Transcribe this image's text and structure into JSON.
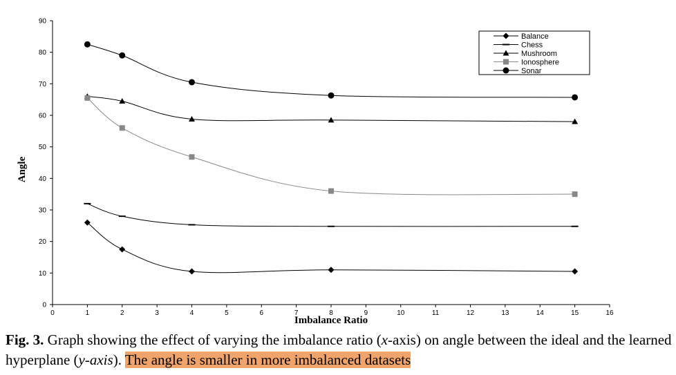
{
  "chart_data": {
    "type": "line",
    "xlabel": "Imbalance Ratio",
    "ylabel": "Angle",
    "xlim": [
      0,
      16
    ],
    "ylim": [
      0,
      90
    ],
    "xticks": [
      0,
      1,
      2,
      3,
      4,
      5,
      6,
      7,
      8,
      9,
      10,
      11,
      12,
      13,
      14,
      15,
      16
    ],
    "yticks": [
      0,
      10,
      20,
      30,
      40,
      50,
      60,
      70,
      80,
      90
    ],
    "grid": false,
    "legend_position": "top-right",
    "x": [
      1,
      2,
      4,
      8,
      15
    ],
    "series": [
      {
        "name": "Balance",
        "values": [
          26,
          17.5,
          10.5,
          11,
          10.5
        ],
        "marker": "diamond",
        "color": "#000000"
      },
      {
        "name": "Chess",
        "values": [
          32,
          28,
          25.3,
          24.8,
          24.8
        ],
        "marker": "dash",
        "color": "#000000"
      },
      {
        "name": "Mushroom",
        "values": [
          66,
          64.5,
          58.8,
          58.5,
          58
        ],
        "marker": "triangle",
        "color": "#000000"
      },
      {
        "name": "Ionosphere",
        "values": [
          65.5,
          56,
          46.8,
          36,
          35
        ],
        "marker": "square",
        "color": "#888888"
      },
      {
        "name": "Sonar",
        "values": [
          82.5,
          79,
          70.5,
          66.3,
          65.7
        ],
        "marker": "circle",
        "color": "#000000"
      }
    ]
  },
  "caption": {
    "label": "Fig. 3.",
    "text_1": " Graph showing the effect of varying the imbalance ratio (",
    "x_italic": "x",
    "text_2": "-axis) on angle between the ideal and the learned hyperplane (",
    "y_italic": "y-axis",
    "text_3": ").",
    "highlight": "The angle is smaller in more imbalanced datasets",
    "highlight_color": "#f0a36a"
  }
}
